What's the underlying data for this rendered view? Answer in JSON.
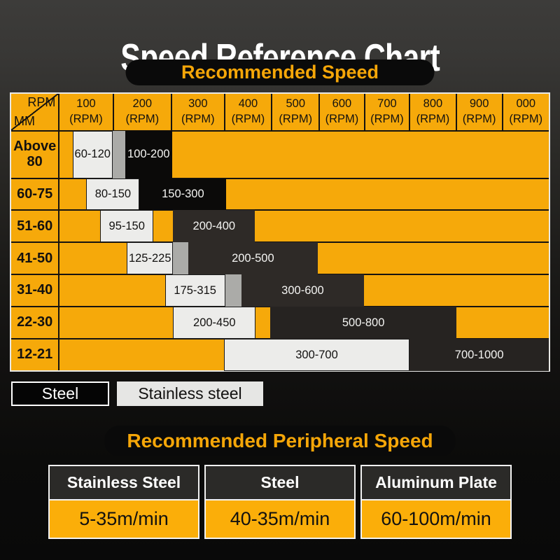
{
  "title": "Speed Reference Chart",
  "sections": {
    "speed_heading": "Recommended Speed",
    "peripheral_heading": "Recommended Peripheral Speed"
  },
  "colors": {
    "accent_yellow": "#F6A90A",
    "card_yellow": "#FBAE09",
    "steel_bar_black": "#0B0A09",
    "steel_bar_soft": "#2E2A27",
    "steel_bar_deep": "#262321",
    "stainless_bar": "#ECECEA",
    "connector_gray": "#ABABA8",
    "pill_background": "#0A0A0A",
    "title_white": "#FFFFFF"
  },
  "table": {
    "corner": {
      "top_label": "RPM",
      "bottom_label": "MM"
    },
    "columns": [
      {
        "value": "100",
        "unit": "(RPM)"
      },
      {
        "value": "200",
        "unit": "(RPM)"
      },
      {
        "value": "300",
        "unit": "(RPM)"
      },
      {
        "value": "400",
        "unit": "(RPM)"
      },
      {
        "value": "500",
        "unit": "(RPM)"
      },
      {
        "value": "600",
        "unit": "(RPM)"
      },
      {
        "value": "700",
        "unit": "(RPM)"
      },
      {
        "value": "800",
        "unit": "(RPM)"
      },
      {
        "value": "900",
        "unit": "(RPM)"
      },
      {
        "value": "000",
        "unit": "(RPM)"
      }
    ],
    "column_widths_pct": [
      10.05,
      10.88,
      9.84,
      8.81,
      8.85,
      8.38,
      8.42,
      8.64,
      8.61,
      8.74
    ],
    "rows": [
      {
        "label": "Above 80",
        "bars": [
          {
            "type": "stainless",
            "label": "60-120",
            "from": 2.6,
            "to": 10.83
          },
          {
            "type": "connector",
            "label": "",
            "from": 10.83,
            "to": 13.39
          },
          {
            "type": "steel",
            "label": "100-200",
            "from": 13.39,
            "to": 22.96,
            "color": "#0B0A09"
          }
        ]
      },
      {
        "label": "60-75",
        "bars": [
          {
            "type": "stainless",
            "label": "80-150",
            "from": 5.44,
            "to": 16.33
          },
          {
            "type": "steel",
            "label": "150-300",
            "from": 16.33,
            "to": 34.07,
            "color": "#0B0A09"
          }
        ]
      },
      {
        "label": "51-60",
        "bars": [
          {
            "type": "stainless",
            "label": "95-150",
            "from": 8.28,
            "to": 19.17
          },
          {
            "type": "steel",
            "label": "200-400",
            "from": 23.18,
            "to": 39.94,
            "color": "#2E2A27"
          }
        ]
      },
      {
        "label": "41-50",
        "bars": [
          {
            "type": "stainless",
            "label": "125-225",
            "from": 13.72,
            "to": 23.18
          },
          {
            "type": "connector",
            "label": "",
            "from": 23.18,
            "to": 26.26
          },
          {
            "type": "steel",
            "label": "200-500",
            "from": 26.26,
            "to": 52.76,
            "color": "#2E2A27"
          }
        ]
      },
      {
        "label": "31-40",
        "bars": [
          {
            "type": "stainless",
            "label": "175-315",
            "from": 21.52,
            "to": 33.83
          },
          {
            "type": "connector",
            "label": "",
            "from": 33.83,
            "to": 37.14
          },
          {
            "type": "steel",
            "label": "300-600",
            "from": 37.14,
            "to": 62.23,
            "color": "#2E2A27"
          }
        ]
      },
      {
        "label": "22-30",
        "bars": [
          {
            "type": "stainless",
            "label": "200-450",
            "from": 23.18,
            "to": 40.08
          },
          {
            "type": "steel",
            "label": "500-800",
            "from": 43.06,
            "to": 81.12,
            "color": "#262321"
          }
        ]
      },
      {
        "label": "12-21",
        "bars": [
          {
            "type": "stainless",
            "label": "300-700",
            "from": 33.55,
            "to": 71.56
          },
          {
            "type": "steel",
            "label": "700-1000",
            "from": 71.56,
            "to": 100,
            "color": "#262321"
          }
        ]
      }
    ]
  },
  "legend": [
    {
      "label": "Steel",
      "type": "steel"
    },
    {
      "label": "Stainless steel",
      "type": "stainless"
    }
  ],
  "cards": [
    {
      "material": "Stainless Steel",
      "speed": "5-35m/min"
    },
    {
      "material": "Steel",
      "speed": "40-35m/min"
    },
    {
      "material": "Aluminum Plate",
      "speed": "60-100m/min"
    }
  ],
  "chart_data": {
    "type": "table",
    "title": "Speed Reference Chart",
    "subtitle": "Recommended Speed",
    "rpm_axis_labels": [
      "100",
      "200",
      "300",
      "400",
      "500",
      "600",
      "700",
      "800",
      "900",
      "000"
    ],
    "rows": [
      {
        "diameter_mm": "Above 80",
        "stainless_steel_rpm": "60-120",
        "steel_rpm": "100-200"
      },
      {
        "diameter_mm": "60-75",
        "stainless_steel_rpm": "80-150",
        "steel_rpm": "150-300"
      },
      {
        "diameter_mm": "51-60",
        "stainless_steel_rpm": "95-150",
        "steel_rpm": "200-400"
      },
      {
        "diameter_mm": "41-50",
        "stainless_steel_rpm": "125-225",
        "steel_rpm": "200-500"
      },
      {
        "diameter_mm": "31-40",
        "stainless_steel_rpm": "175-315",
        "steel_rpm": "300-600"
      },
      {
        "diameter_mm": "22-30",
        "stainless_steel_rpm": "200-450",
        "steel_rpm": "500-800"
      },
      {
        "diameter_mm": "12-21",
        "stainless_steel_rpm": "300-700",
        "steel_rpm": "700-1000"
      }
    ],
    "legend": [
      "Steel",
      "Stainless steel"
    ],
    "peripheral_speed": {
      "title": "Recommended Peripheral Speed",
      "materials": [
        "Stainless Steel",
        "Steel",
        "Aluminum Plate"
      ],
      "speeds": [
        "5-35m/min",
        "40-35m/min",
        "60-100m/min"
      ]
    }
  }
}
